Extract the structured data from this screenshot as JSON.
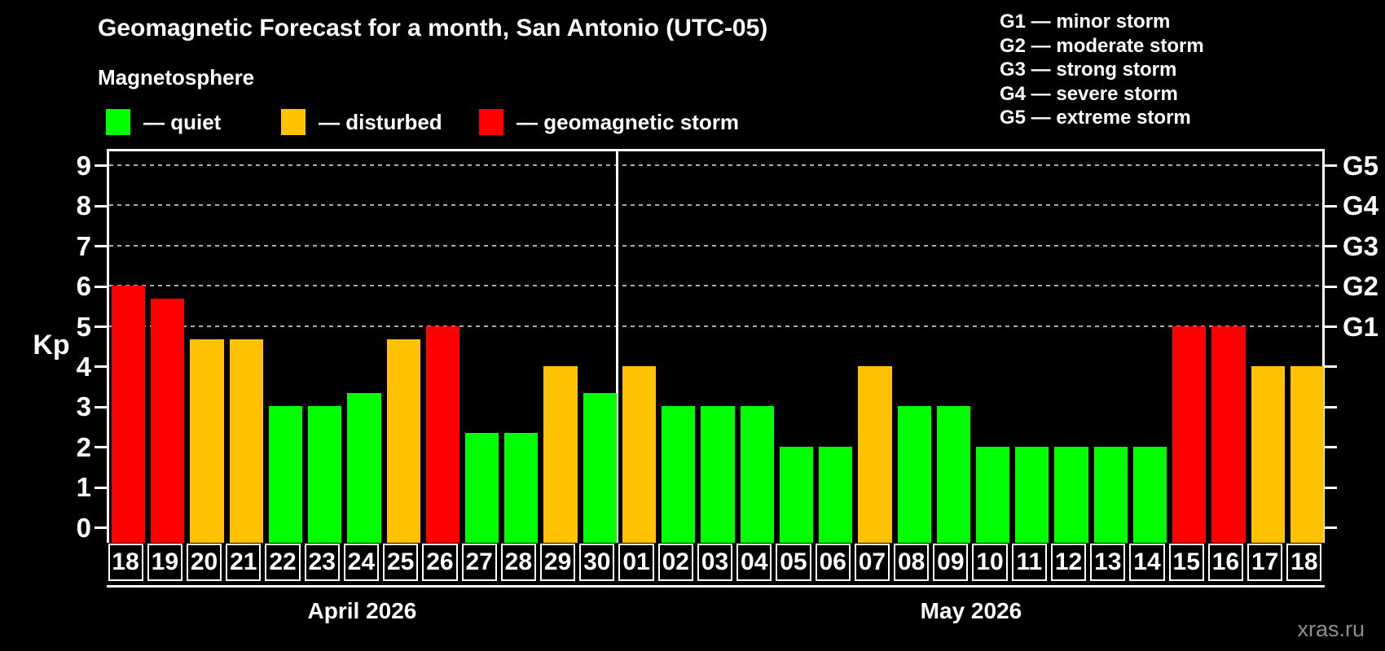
{
  "title": "Geomagnetic Forecast for a month, San Antonio (UTC-05)",
  "subtitle": "Magnetosphere",
  "watermark": "xras.ru",
  "colors": {
    "background": "#000000",
    "quiet": "#00ff00",
    "disturbed": "#ffc200",
    "storm": "#ff0000",
    "grid": "#aaaaaa",
    "axis": "#ffffff"
  },
  "legend": [
    {
      "key": "quiet",
      "label": "— quiet"
    },
    {
      "key": "disturbed",
      "label": "— disturbed"
    },
    {
      "key": "storm",
      "label": "— geomagnetic storm"
    }
  ],
  "g_scale_legend": [
    "G1 — minor storm",
    "G2 — moderate storm",
    "G3 — strong storm",
    "G4 — severe storm",
    "G5 — extreme storm"
  ],
  "chart_data": {
    "type": "bar",
    "ylabel": "Kp",
    "ylim": [
      -0.5,
      9.4
    ],
    "y_ticks": [
      0,
      1,
      2,
      3,
      4,
      5,
      6,
      7,
      8,
      9
    ],
    "g_ticks": [
      {
        "kp": 5,
        "label": "G1"
      },
      {
        "kp": 6,
        "label": "G2"
      },
      {
        "kp": 7,
        "label": "G3"
      },
      {
        "kp": 8,
        "label": "G4"
      },
      {
        "kp": 9,
        "label": "G5"
      }
    ],
    "gridlines_at": [
      5,
      6,
      7,
      8,
      9
    ],
    "grid": "dashed horizontal lines at G-storm levels only",
    "legend_position": "top-left",
    "months": [
      {
        "label": "April 2026",
        "days": [
          {
            "day": "18",
            "kp": 6.0,
            "condition": "storm"
          },
          {
            "day": "19",
            "kp": 5.67,
            "condition": "storm"
          },
          {
            "day": "20",
            "kp": 4.67,
            "condition": "disturbed"
          },
          {
            "day": "21",
            "kp": 4.67,
            "condition": "disturbed"
          },
          {
            "day": "22",
            "kp": 3.0,
            "condition": "quiet"
          },
          {
            "day": "23",
            "kp": 3.0,
            "condition": "quiet"
          },
          {
            "day": "24",
            "kp": 3.33,
            "condition": "quiet"
          },
          {
            "day": "25",
            "kp": 4.67,
            "condition": "disturbed"
          },
          {
            "day": "26",
            "kp": 5.0,
            "condition": "storm"
          },
          {
            "day": "27",
            "kp": 2.33,
            "condition": "quiet"
          },
          {
            "day": "28",
            "kp": 2.33,
            "condition": "quiet"
          },
          {
            "day": "29",
            "kp": 4.0,
            "condition": "disturbed"
          },
          {
            "day": "30",
            "kp": 3.33,
            "condition": "quiet"
          }
        ]
      },
      {
        "label": "May 2026",
        "days": [
          {
            "day": "01",
            "kp": 4.0,
            "condition": "disturbed"
          },
          {
            "day": "02",
            "kp": 3.0,
            "condition": "quiet"
          },
          {
            "day": "03",
            "kp": 3.0,
            "condition": "quiet"
          },
          {
            "day": "04",
            "kp": 3.0,
            "condition": "quiet"
          },
          {
            "day": "05",
            "kp": 2.0,
            "condition": "quiet"
          },
          {
            "day": "06",
            "kp": 2.0,
            "condition": "quiet"
          },
          {
            "day": "07",
            "kp": 4.0,
            "condition": "disturbed"
          },
          {
            "day": "08",
            "kp": 3.0,
            "condition": "quiet"
          },
          {
            "day": "09",
            "kp": 3.0,
            "condition": "quiet"
          },
          {
            "day": "10",
            "kp": 2.0,
            "condition": "quiet"
          },
          {
            "day": "11",
            "kp": 2.0,
            "condition": "quiet"
          },
          {
            "day": "12",
            "kp": 2.0,
            "condition": "quiet"
          },
          {
            "day": "13",
            "kp": 2.0,
            "condition": "quiet"
          },
          {
            "day": "14",
            "kp": 2.0,
            "condition": "quiet"
          },
          {
            "day": "15",
            "kp": 5.0,
            "condition": "storm"
          },
          {
            "day": "16",
            "kp": 5.0,
            "condition": "storm"
          },
          {
            "day": "17",
            "kp": 4.0,
            "condition": "disturbed"
          },
          {
            "day": "18",
            "kp": 4.0,
            "condition": "disturbed"
          }
        ]
      }
    ]
  }
}
